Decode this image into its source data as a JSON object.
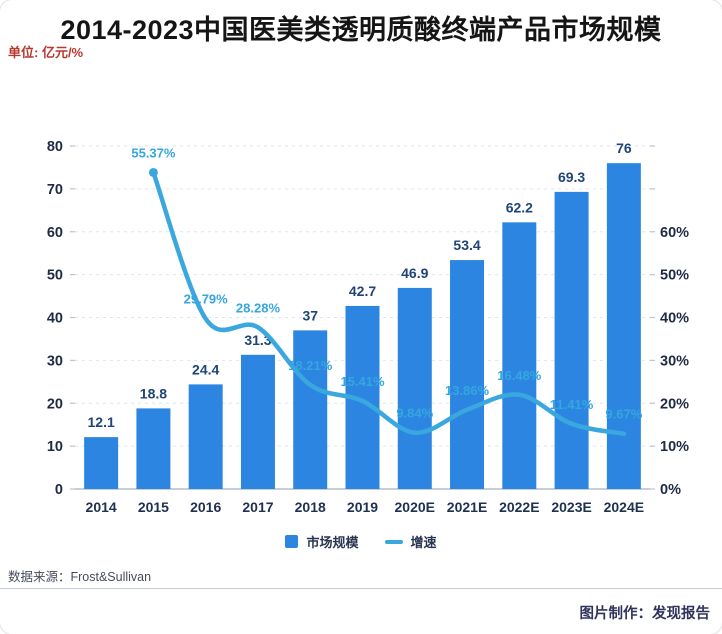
{
  "header": {
    "title": "2014-2023中国医美类透明质酸终端产品市场规模",
    "unit": "单位: 亿元/%"
  },
  "legend": {
    "bar_label": "市场规模",
    "line_label": "增速"
  },
  "footer": {
    "source": "数据来源：Frost&Sullivan",
    "credit": "图片制作：发现报告"
  },
  "colors": {
    "bar": "#2c86e1",
    "line": "#3ba7df",
    "bar_label": "#1f4577",
    "line_label": "#35a6df",
    "axis_label": "#1f2a44",
    "x_label": "#1f3050",
    "grid": "#dce6f2",
    "axis_line": "#a7b0be",
    "tick": "#b9c4d4",
    "unit_text": "#b8382f"
  },
  "chart_data": {
    "type": "bar",
    "subtype": "bar+line combo, dual y-axis",
    "title": "2014-2023中国医美类透明质酸终端产品市场规模",
    "unit_note": "单位: 亿元/%",
    "categories": [
      "2014",
      "2015",
      "2016",
      "2017",
      "2018",
      "2019",
      "2020E",
      "2021E",
      "2022E",
      "2023E",
      "2024E"
    ],
    "series": [
      {
        "name": "市场规模",
        "type": "bar",
        "unit": "亿元",
        "axis": "left",
        "values": [
          12.1,
          18.8,
          24.4,
          31.3,
          37,
          42.7,
          46.9,
          53.4,
          62.2,
          69.3,
          76
        ],
        "labels": [
          "12.1",
          "18.8",
          "24.4",
          "31.3",
          "37",
          "42.7",
          "46.9",
          "53.4",
          "62.2",
          "69.3",
          "76"
        ]
      },
      {
        "name": "增速",
        "type": "line",
        "unit": "%",
        "axis": "right",
        "values": [
          null,
          55.37,
          29.79,
          28.28,
          18.21,
          15.41,
          9.84,
          13.86,
          16.48,
          11.41,
          9.67
        ],
        "labels": [
          null,
          "55.37%",
          "29.79%",
          "28.28%",
          "18.21%",
          "15.41%",
          "9.84%",
          "13.86%",
          "16.48%",
          "11.41%",
          "9.67%"
        ]
      }
    ],
    "left_axis": {
      "min": 0,
      "max": 80,
      "step": 10,
      "ticks": [
        "0",
        "10",
        "20",
        "30",
        "40",
        "50",
        "60",
        "70",
        "80"
      ]
    },
    "right_axis": {
      "min": 0,
      "max": 60,
      "step": 10,
      "ticks": [
        "0%",
        "10%",
        "20%",
        "30%",
        "40%",
        "50%",
        "60%"
      ]
    },
    "grid": "horizontal dashed",
    "legend_position": "bottom",
    "source": "Frost&Sullivan"
  }
}
